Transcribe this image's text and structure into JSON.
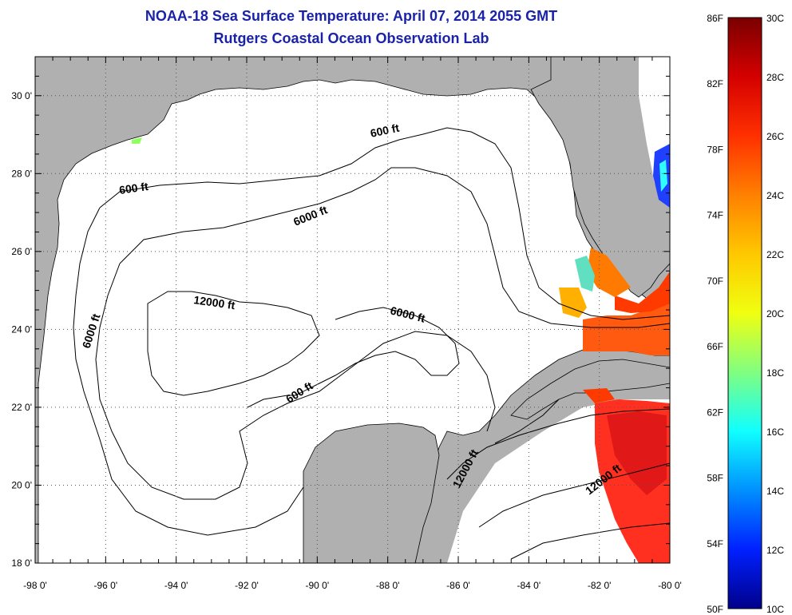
{
  "header": {
    "title": "NOAA-18 Sea Surface Temperature:  April 07, 2014 2055 GMT",
    "subtitle": "Rutgers Coastal Ocean Observation Lab"
  },
  "map": {
    "lon_range": [
      -98,
      -80
    ],
    "lat_range": [
      18,
      31
    ],
    "lon_ticks": [
      "-98 0'",
      "-96 0'",
      "-94 0'",
      "-92 0'",
      "-90 0'",
      "-88 0'",
      "-86 0'",
      "-84 0'",
      "-82 0'",
      "-80 0'"
    ],
    "lat_ticks": [
      "18 0'",
      "20 0'",
      "22 0'",
      "24 0'",
      "26 0'",
      "28 0'",
      "30 0'"
    ],
    "gridlines": "dotted",
    "land_color": "#b0b0b0",
    "water_color": "#ffffff",
    "contour_labels": [
      "600 ft",
      "600 ft",
      "6000 ft",
      "6000 ft",
      "12000 ft",
      "6000 ft",
      "600 ft",
      "12000 ft",
      "12000 ft"
    ]
  },
  "colorbar": {
    "f_labels": [
      "86F",
      "82F",
      "78F",
      "74F",
      "70F",
      "66F",
      "62F",
      "58F",
      "54F",
      "50F"
    ],
    "c_labels": [
      "30C",
      "28C",
      "26C",
      "24C",
      "22C",
      "20C",
      "18C",
      "16C",
      "14C",
      "12C",
      "10C"
    ],
    "colors_top_to_bottom": [
      "#7a0000",
      "#d40000",
      "#ff3000",
      "#ff8000",
      "#ffc800",
      "#f0ff10",
      "#80ff80",
      "#10ffff",
      "#0090ff",
      "#0020ff",
      "#00008a"
    ]
  }
}
